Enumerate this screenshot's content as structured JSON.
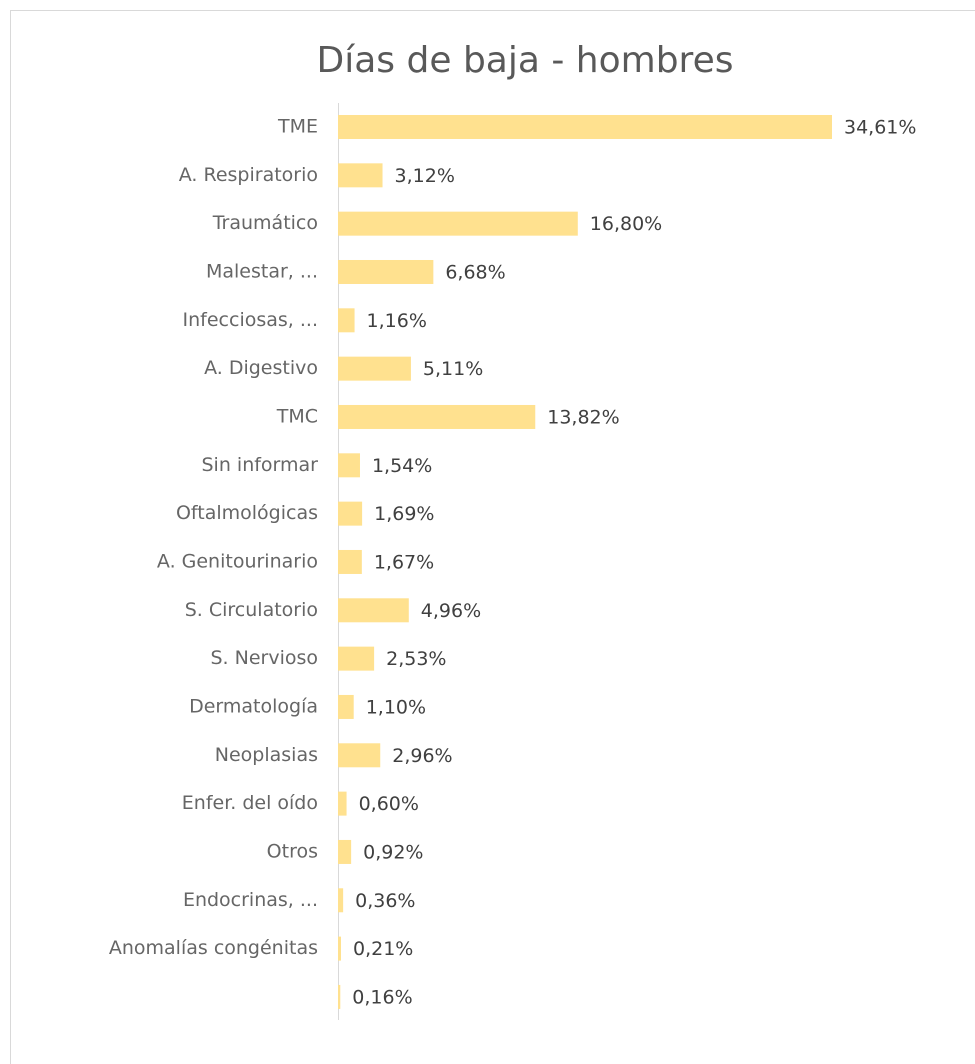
{
  "chart_data": {
    "type": "bar",
    "orientation": "horizontal",
    "title": "Días de baja - hombres",
    "categories": [
      "TME",
      "A. Respiratorio",
      "Traumático",
      "Malestar, ...",
      "Infecciosas, ...",
      "A. Digestivo",
      "TMC",
      "Sin informar",
      "Oftalmológicas",
      "A. Genitourinario",
      "S. Circulatorio",
      "S. Nervioso",
      "Dermatología",
      "Neoplasias",
      "Enfer. del oído",
      "Otros",
      "Endocrinas, ...",
      "Anomalías congénitas",
      null
    ],
    "values": [
      34.61,
      3.12,
      16.8,
      6.68,
      1.16,
      5.11,
      13.82,
      1.54,
      1.69,
      1.67,
      4.96,
      2.53,
      1.1,
      2.96,
      0.6,
      0.92,
      0.36,
      0.21,
      0.16
    ],
    "value_labels": [
      "34,61%",
      "3,12%",
      "16,80%",
      "6,68%",
      "1,16%",
      "5,11%",
      "13,82%",
      "1,54%",
      "1,69%",
      "1,67%",
      "4,96%",
      "2,53%",
      "1,10%",
      "2,96%",
      "0,60%",
      "0,92%",
      "0,36%",
      "0,21%",
      "0,16%"
    ],
    "color": "#ffe18f"
  }
}
